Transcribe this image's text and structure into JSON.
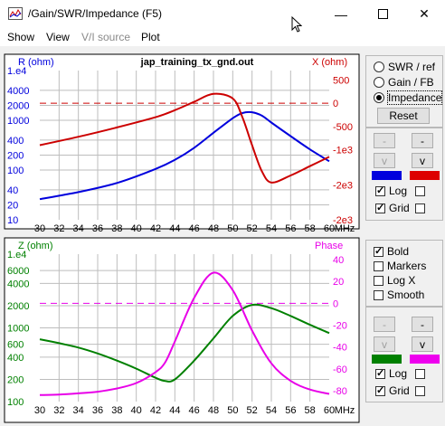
{
  "window": {
    "title": "/Gain/SWR/Impedance (F5)"
  },
  "menu": [
    {
      "label": "Show",
      "enabled": true
    },
    {
      "label": "View",
      "enabled": true
    },
    {
      "label": "V/I source",
      "enabled": false
    },
    {
      "label": "Plot",
      "enabled": true
    }
  ],
  "top_plot": {
    "file_title": "jap_training_tx_gnd.out",
    "left_label": "R (ohm)",
    "right_label": "X (ohm)",
    "left_ticks": [
      "1.e4",
      "4000",
      "2000",
      "1000",
      "400",
      "200",
      "100",
      "40",
      "20",
      "10"
    ],
    "right_ticks": [
      "500",
      "0",
      "-500",
      "-1e3",
      "-2e3",
      "-2e3"
    ],
    "x_ticks": [
      "30",
      "32",
      "34",
      "36",
      "38",
      "40",
      "42",
      "44",
      "46",
      "48",
      "50",
      "52",
      "54",
      "56",
      "58",
      "60"
    ],
    "x_unit": "MHz",
    "colors": {
      "left": "#0000dd",
      "right": "#cc0000"
    }
  },
  "bottom_plot": {
    "left_label": "Z (ohm)",
    "right_label": "Phase",
    "left_ticks": [
      "1.e4",
      "6000",
      "4000",
      "2000",
      "1000",
      "600",
      "400",
      "200",
      "100"
    ],
    "right_ticks": [
      "40",
      "20",
      "0",
      "-20",
      "-40",
      "-60",
      "-80"
    ],
    "x_ticks": [
      "30",
      "32",
      "34",
      "36",
      "38",
      "40",
      "42",
      "44",
      "46",
      "48",
      "50",
      "52",
      "54",
      "56",
      "58",
      "60"
    ],
    "x_unit": "MHz",
    "colors": {
      "left": "#008000",
      "right": "#e800e8"
    }
  },
  "chart_data": [
    {
      "type": "line",
      "title": "jap_training_tx_gnd.out",
      "xlabel": "MHz",
      "ylabel": "R (ohm)",
      "y2label": "X (ohm)",
      "x": [
        30,
        34,
        38,
        42,
        44,
        46,
        48,
        50,
        51,
        52,
        53,
        54,
        56,
        58,
        60
      ],
      "series": [
        {
          "name": "R (ohm)",
          "axis": "left",
          "scale": "log",
          "values": [
            26,
            36,
            55,
            105,
            160,
            280,
            560,
            1100,
            1400,
            1450,
            1250,
            900,
            480,
            260,
            150
          ]
        },
        {
          "name": "X (ohm)",
          "axis": "right",
          "values": [
            -900,
            -720,
            -520,
            -300,
            -150,
            30,
            200,
            100,
            -300,
            -900,
            -1450,
            -1700,
            -1550,
            -1350,
            -1150
          ]
        }
      ],
      "ylim": [
        10,
        10000
      ],
      "y2lim": [
        -2500,
        700
      ],
      "xlim": [
        30,
        60
      ],
      "grid": true
    },
    {
      "type": "line",
      "xlabel": "MHz",
      "ylabel": "Z (ohm)",
      "y2label": "Phase",
      "x": [
        30,
        32,
        34,
        36,
        38,
        40,
        42,
        43,
        44,
        46,
        48,
        50,
        52,
        54,
        56,
        58,
        60
      ],
      "series": [
        {
          "name": "Z (ohm)",
          "axis": "left",
          "scale": "log",
          "values": [
            700,
            620,
            540,
            450,
            360,
            280,
            210,
            190,
            200,
            360,
            720,
            1450,
            2050,
            1850,
            1450,
            1100,
            850
          ]
        },
        {
          "name": "Phase",
          "axis": "right",
          "values": [
            -84,
            -83.5,
            -82.5,
            -81,
            -78,
            -73,
            -63,
            -54,
            -35,
            5,
            28,
            12,
            -25,
            -55,
            -71,
            -79,
            -83
          ]
        }
      ],
      "ylim": [
        100,
        10000
      ],
      "y2lim": [
        -90,
        45
      ],
      "xlim": [
        30,
        60
      ],
      "grid": true
    }
  ],
  "controls_top": {
    "radios": [
      {
        "label": "SWR / ref",
        "checked": false
      },
      {
        "label": "Gain / FB",
        "checked": false
      },
      {
        "label": "Impedance",
        "checked": true
      }
    ],
    "reset_label": "Reset",
    "arrow_minus": "-",
    "arrow_down": "v",
    "swatch_left": "#0000dd",
    "swatch_right": "#dd0000",
    "log_label": "Log",
    "grid_label": "Grid",
    "log_checked": true,
    "grid_checked": true
  },
  "controls_bottom": {
    "checks": [
      {
        "label": "Bold",
        "checked": true
      },
      {
        "label": "Markers",
        "checked": false
      },
      {
        "label": "Log X",
        "checked": false
      },
      {
        "label": "Smooth",
        "checked": false
      }
    ],
    "arrow_minus": "-",
    "arrow_down": "v",
    "swatch_left": "#008000",
    "swatch_right": "#ee00ee",
    "log_label": "Log",
    "grid_label": "Grid",
    "log_checked": true,
    "grid_checked": true
  }
}
